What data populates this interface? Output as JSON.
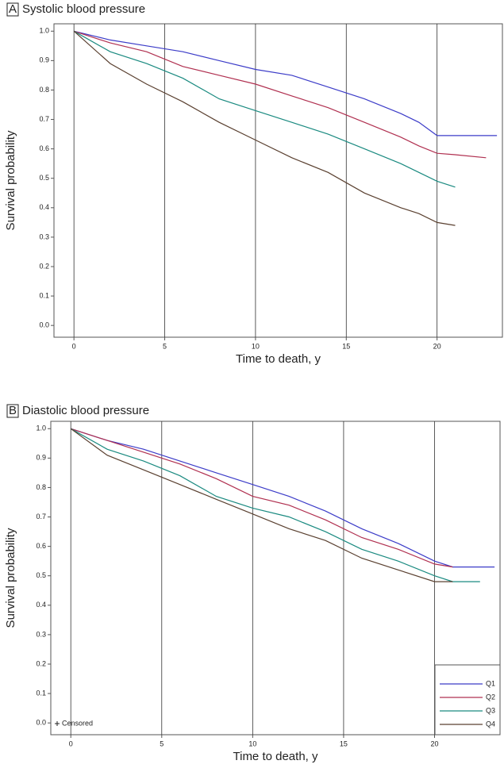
{
  "chart_data": [
    {
      "type": "line",
      "panel": "A",
      "title": "Systolic blood pressure",
      "x_label": "Time to death, y",
      "y_label": "Survival probability",
      "x": [
        0,
        2,
        4,
        6,
        8,
        10,
        12,
        14,
        16,
        18,
        19,
        20,
        21,
        22.7,
        23.3
      ],
      "series": [
        {
          "color": "#3c3cc8",
          "values": [
            1.0,
            0.97,
            0.95,
            0.93,
            0.9,
            0.87,
            0.85,
            0.81,
            0.77,
            0.72,
            0.69,
            0.645,
            0.645,
            0.645,
            0.645
          ]
        },
        {
          "color": "#b03050",
          "values": [
            1.0,
            0.96,
            0.93,
            0.88,
            0.85,
            0.82,
            0.78,
            0.74,
            0.69,
            0.64,
            0.61,
            0.585,
            0.58,
            0.57,
            null
          ]
        },
        {
          "color": "#1a8a80",
          "values": [
            1.0,
            0.93,
            0.89,
            0.84,
            0.77,
            0.73,
            0.69,
            0.65,
            0.6,
            0.55,
            0.52,
            0.49,
            0.47,
            null,
            null
          ]
        },
        {
          "color": "#5a4030",
          "values": [
            1.0,
            0.89,
            0.82,
            0.76,
            0.69,
            0.63,
            0.57,
            0.52,
            0.45,
            0.4,
            0.38,
            0.35,
            0.34,
            null,
            null
          ]
        }
      ],
      "xlim": [
        -1.1,
        23.6
      ],
      "xticks": [
        0,
        5,
        10,
        15,
        20
      ],
      "ylim": [
        -0.04,
        1.025
      ],
      "yticks": [
        {
          "value": 0,
          "label": "0.0"
        },
        0.1,
        0.2,
        0.3,
        0.4,
        0.5,
        0.6,
        0.7,
        0.8,
        0.9,
        {
          "value": 1,
          "label": "1.0"
        }
      ],
      "grid": "x",
      "legend": false
    },
    {
      "type": "line",
      "panel": "B",
      "title": "Diastolic blood pressure",
      "x_label": "Time to death, y",
      "y_label": "Survival probability",
      "x": [
        0,
        2,
        4,
        6,
        8,
        10,
        12,
        14,
        16,
        18,
        20,
        21,
        22.5,
        23.3
      ],
      "series": [
        {
          "name": "Q1",
          "color": "#3c3cc8",
          "values": [
            1.0,
            0.96,
            0.93,
            0.89,
            0.85,
            0.81,
            0.77,
            0.72,
            0.66,
            0.61,
            0.55,
            0.53,
            0.53,
            0.53
          ]
        },
        {
          "name": "Q2",
          "color": "#b03050",
          "values": [
            1.0,
            0.96,
            0.92,
            0.88,
            0.83,
            0.77,
            0.74,
            0.69,
            0.63,
            0.59,
            0.54,
            0.53,
            null,
            null
          ]
        },
        {
          "name": "Q3",
          "color": "#1a8a80",
          "values": [
            1.0,
            0.93,
            0.89,
            0.84,
            0.77,
            0.73,
            0.7,
            0.65,
            0.59,
            0.55,
            0.5,
            0.48,
            0.48,
            null
          ]
        },
        {
          "name": "Q4",
          "color": "#5a4030",
          "values": [
            1.0,
            0.91,
            0.86,
            0.81,
            0.76,
            0.71,
            0.66,
            0.62,
            0.56,
            0.52,
            0.48,
            0.48,
            null,
            null
          ]
        }
      ],
      "xlim": [
        -1.1,
        23.6
      ],
      "xticks": [
        0,
        5,
        10,
        15,
        20
      ],
      "ylim": [
        -0.04,
        1.025
      ],
      "yticks": [
        {
          "value": 0,
          "label": "0.0"
        },
        0.1,
        0.2,
        0.3,
        0.4,
        0.5,
        0.6,
        0.7,
        0.8,
        0.9,
        {
          "value": 1,
          "label": "1.0"
        }
      ],
      "grid": "x",
      "legend": "lower right",
      "annotation": "Censored"
    }
  ]
}
